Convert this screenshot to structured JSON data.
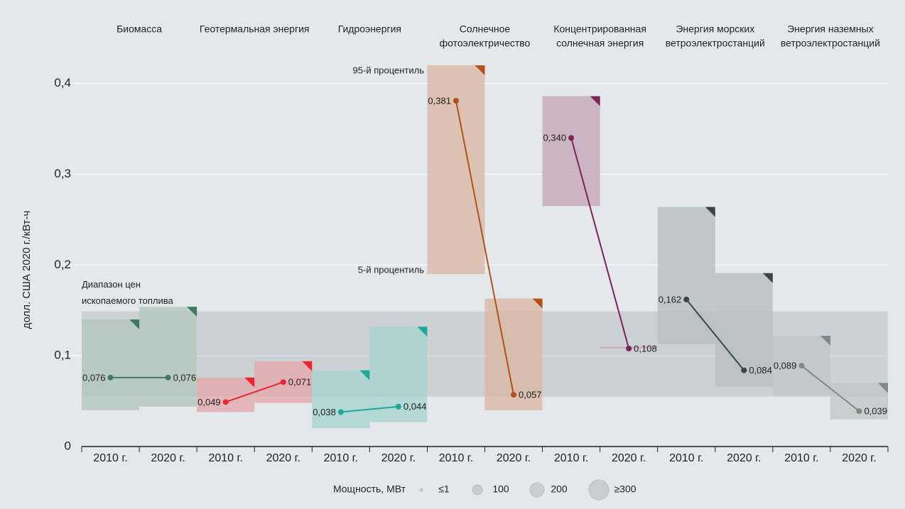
{
  "chart_data": {
    "type": "range",
    "y_label": "долл. США 2020 г./кВт-ч",
    "ylim": [
      0,
      0.42
    ],
    "yticks": [
      0,
      {
        "value": 0.1,
        "label": "0,1"
      },
      {
        "value": 0.2,
        "label": "0,2"
      },
      {
        "value": 0.3,
        "label": "0,3"
      },
      {
        "value": 0.4,
        "label": "0,4"
      }
    ],
    "grid": true,
    "fossil_range": {
      "label": [
        "Диапазон цен",
        "ископаемого топлива"
      ],
      "low": 0.055,
      "high": 0.149
    },
    "annotations": {
      "p95": "95-й процентиль",
      "p5": "5-й процентиль"
    },
    "groups": [
      {
        "name": [
          "Биомасса"
        ],
        "color": "#3e7a66",
        "box_color": "#b3c6be",
        "years": [
          "2010 г.",
          "2020 г."
        ],
        "low": [
          0.04,
          0.044
        ],
        "high": [
          0.14,
          0.154
        ],
        "values": [
          0.076,
          0.076
        ],
        "value_labels": [
          "0,076",
          "0,076"
        ]
      },
      {
        "name": [
          "Геотермальная энергия"
        ],
        "color": "#e8262d",
        "box_color": "#e3a9ad",
        "years": [
          "2010 г.",
          "2020 г."
        ],
        "low": [
          0.038,
          0.048
        ],
        "high": [
          0.076,
          0.094
        ],
        "values": [
          0.049,
          0.071
        ],
        "value_labels": [
          "0,049",
          "0,071"
        ]
      },
      {
        "name": [
          "Гидроэнергия"
        ],
        "color": "#1ea89a",
        "box_color": "#a6d3cf",
        "years": [
          "2010 г.",
          "2020 г."
        ],
        "low": [
          0.02,
          0.027
        ],
        "high": [
          0.084,
          0.132
        ],
        "values": [
          0.038,
          0.044
        ],
        "value_labels": [
          "0,038",
          "0,044"
        ]
      },
      {
        "name": [
          "Солнечное",
          "фотоэлектричество"
        ],
        "color": "#b5501a",
        "box_color": "#d8b8a4",
        "years": [
          "2010 г.",
          "2020 г."
        ],
        "low": [
          0.19,
          0.04
        ],
        "high": [
          0.42,
          0.163
        ],
        "values": [
          0.381,
          0.057
        ],
        "value_labels": [
          "0,381",
          "0,057"
        ]
      },
      {
        "name": [
          "Концентрированная",
          "солнечная энергия"
        ],
        "color": "#7d2359",
        "box_color": "#c4a8bc",
        "years": [
          "2010 г.",
          "2020 г."
        ],
        "low": [
          0.265,
          0.108
        ],
        "high": [
          0.386,
          0.11
        ],
        "values": [
          0.34,
          0.108
        ],
        "value_labels": [
          "0,340",
          "0,108"
        ]
      },
      {
        "name": [
          "Энергия морских",
          "ветроэлектростанций"
        ],
        "color": "#3c4648",
        "box_color": "#b6bec1",
        "years": [
          "2010 г.",
          "2020 г."
        ],
        "low": [
          0.113,
          0.066
        ],
        "high": [
          0.264,
          0.191
        ],
        "values": [
          0.162,
          0.084
        ],
        "value_labels": [
          "0,162",
          "0,084"
        ]
      },
      {
        "name": [
          "Энергия наземных",
          "ветроэлектростанций"
        ],
        "color": "#7d8a85",
        "box_color": "#c0c7c5",
        "years": [
          "2010 г.",
          "2020 г."
        ],
        "low": [
          0.056,
          0.03
        ],
        "high": [
          0.122,
          0.07
        ],
        "values": [
          0.089,
          0.039
        ],
        "value_labels": [
          "0,089",
          "0,039"
        ]
      }
    ],
    "legend": {
      "title": "Мощность, МВт",
      "items": [
        "≤1",
        "100",
        "200",
        "≥300"
      ]
    }
  }
}
